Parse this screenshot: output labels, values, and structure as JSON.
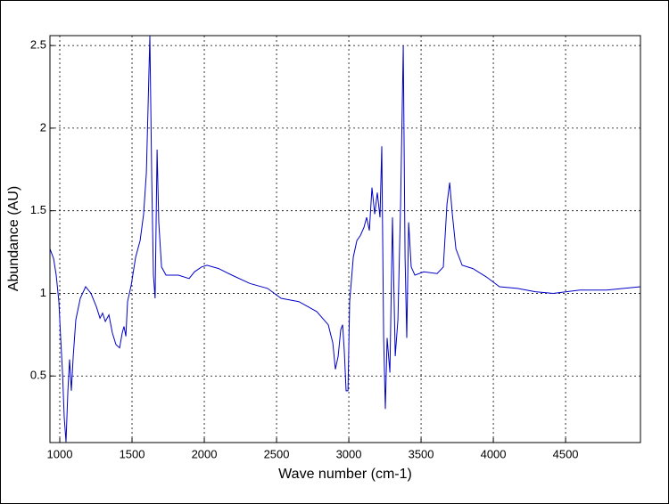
{
  "chart_data": {
    "type": "line",
    "xlabel": "Wave number (cm-1)",
    "ylabel": "Abundance (AU)",
    "color": "#0000c8",
    "grid": true,
    "xlim": [
      932,
      5018
    ],
    "ylim": [
      0.097,
      2.56
    ],
    "xticks": [
      1000,
      1500,
      2000,
      2500,
      3000,
      3500,
      4000,
      4500
    ],
    "yticks": [
      0.5,
      1,
      1.5,
      2,
      2.5
    ],
    "x": [
      932,
      957,
      975,
      994,
      1006,
      1019,
      1031,
      1043,
      1056,
      1068,
      1080,
      1093,
      1111,
      1142,
      1179,
      1216,
      1253,
      1278,
      1296,
      1315,
      1340,
      1364,
      1389,
      1414,
      1432,
      1444,
      1457,
      1469,
      1494,
      1525,
      1556,
      1580,
      1599,
      1611,
      1623,
      1636,
      1648,
      1660,
      1673,
      1685,
      1704,
      1735,
      1821,
      1895,
      1932,
      1981,
      2019,
      2099,
      2191,
      2315,
      2438,
      2531,
      2654,
      2778,
      2858,
      2889,
      2907,
      2926,
      2944,
      2957,
      2969,
      2981,
      2994,
      3006,
      3031,
      3056,
      3080,
      3105,
      3123,
      3142,
      3160,
      3179,
      3197,
      3216,
      3228,
      3241,
      3253,
      3265,
      3284,
      3302,
      3321,
      3340,
      3358,
      3377,
      3389,
      3401,
      3414,
      3432,
      3457,
      3519,
      3611,
      3654,
      3679,
      3698,
      3716,
      3741,
      3784,
      3858,
      3951,
      4043,
      4167,
      4290,
      4414,
      4599,
      4784,
      5018
    ],
    "values": [
      1.27,
      1.21,
      1.11,
      0.95,
      0.73,
      0.52,
      0.25,
      0.1,
      0.41,
      0.6,
      0.41,
      0.62,
      0.84,
      0.97,
      1.04,
      1.0,
      0.92,
      0.85,
      0.88,
      0.83,
      0.87,
      0.76,
      0.69,
      0.67,
      0.76,
      0.8,
      0.74,
      0.95,
      1.05,
      1.22,
      1.32,
      1.48,
      1.73,
      2.13,
      2.56,
      1.7,
      1.11,
      0.97,
      1.87,
      1.43,
      1.16,
      1.11,
      1.11,
      1.09,
      1.13,
      1.16,
      1.17,
      1.15,
      1.11,
      1.06,
      1.03,
      0.97,
      0.95,
      0.89,
      0.81,
      0.7,
      0.54,
      0.62,
      0.78,
      0.81,
      0.65,
      0.41,
      0.41,
      0.95,
      1.22,
      1.32,
      1.35,
      1.4,
      1.46,
      1.38,
      1.64,
      1.48,
      1.61,
      1.46,
      1.89,
      0.73,
      0.3,
      0.73,
      0.52,
      1.46,
      0.62,
      0.84,
      1.54,
      2.5,
      1.22,
      0.73,
      1.43,
      1.16,
      1.11,
      1.13,
      1.12,
      1.16,
      1.54,
      1.67,
      1.48,
      1.27,
      1.17,
      1.15,
      1.1,
      1.04,
      1.03,
      1.01,
      1.0,
      1.02,
      1.02,
      1.04
    ]
  }
}
